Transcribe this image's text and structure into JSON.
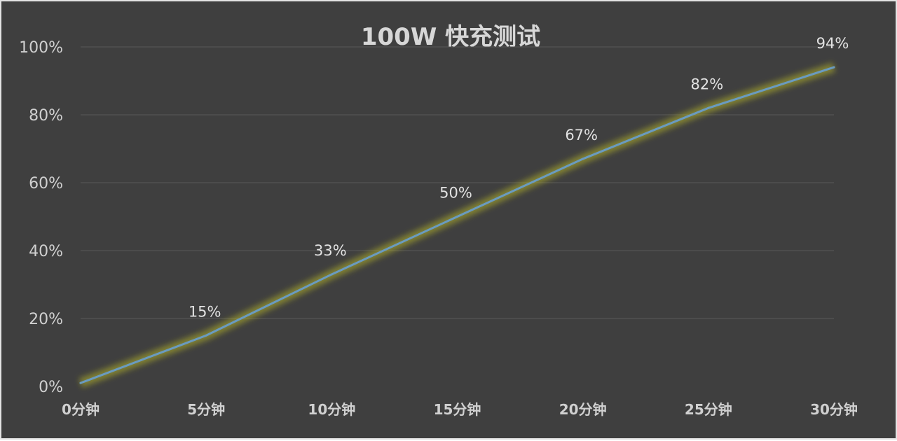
{
  "chart_data": {
    "type": "line",
    "title": "100W 快充测试",
    "categories": [
      "0分钟",
      "5分钟",
      "10分钟",
      "15分钟",
      "20分钟",
      "25分钟",
      "30分钟"
    ],
    "series": [
      {
        "values": [
          1,
          15,
          33,
          50,
          67,
          82,
          94
        ],
        "data_labels": [
          "",
          "15%",
          "33%",
          "50%",
          "67%",
          "82%",
          "94%"
        ]
      }
    ],
    "y_ticks": [
      "0%",
      "20%",
      "40%",
      "60%",
      "80%",
      "100%"
    ],
    "ylim": [
      0,
      100
    ],
    "grid": true,
    "legend": "none",
    "colors": {
      "background": "#3f3f3f",
      "line": "#6a9bc0",
      "glow": "#b3b32a",
      "gridline": "#5a5a5a",
      "text": "#d0d0d0"
    }
  }
}
